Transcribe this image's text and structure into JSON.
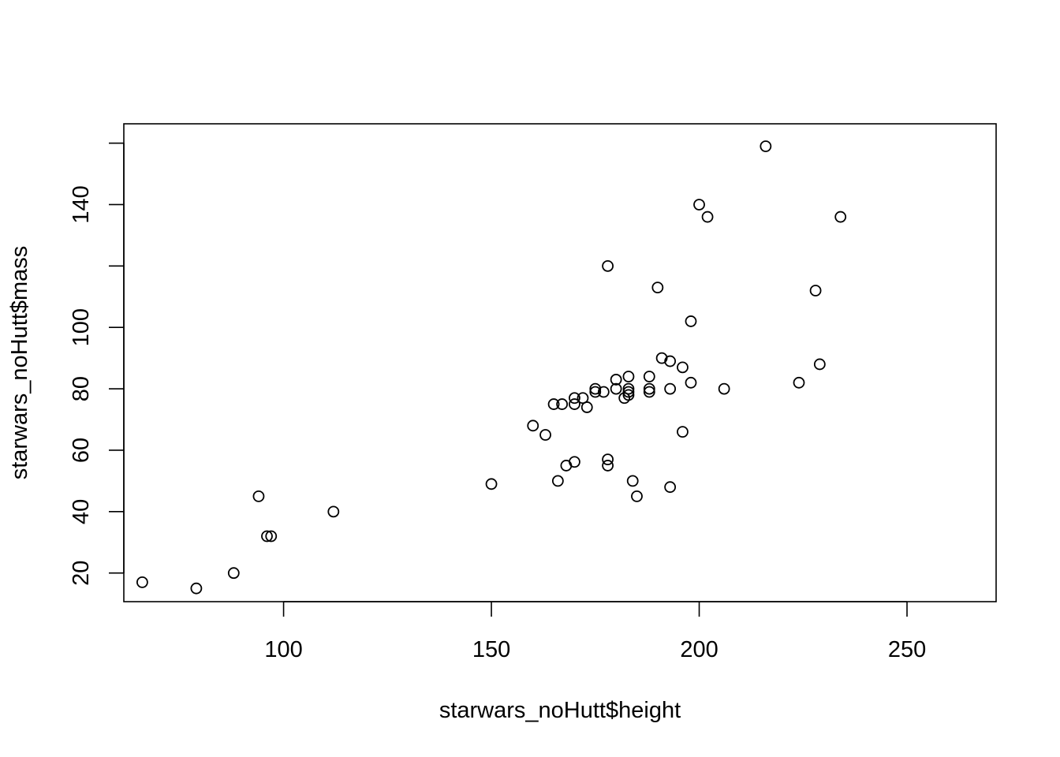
{
  "chart_data": {
    "type": "scatter",
    "title": "",
    "xlabel": "starwars_noHutt$height",
    "ylabel": "starwars_noHutt$mass",
    "xlim": [
      61.56,
      271.44
    ],
    "ylim": [
      10.68,
      166.32
    ],
    "x_ticks": [
      100,
      150,
      200,
      250
    ],
    "y_ticks": [
      20,
      40,
      60,
      80,
      100,
      120,
      140,
      160
    ],
    "x_tick_labels": [
      "100",
      "150",
      "200",
      "250"
    ],
    "y_tick_labels": [
      "20",
      "40",
      "60",
      "80",
      "100",
      "",
      "140",
      ""
    ],
    "grid": false,
    "legend": "none",
    "points": [
      [
        66,
        17
      ],
      [
        79,
        15
      ],
      [
        88,
        20
      ],
      [
        94,
        45
      ],
      [
        96,
        32
      ],
      [
        97,
        32
      ],
      [
        112,
        40
      ],
      [
        150,
        49
      ],
      [
        160,
        68
      ],
      [
        163,
        65
      ],
      [
        165,
        75
      ],
      [
        166,
        50
      ],
      [
        167,
        75
      ],
      [
        168,
        55
      ],
      [
        170,
        77
      ],
      [
        170,
        75
      ],
      [
        170,
        56.2
      ],
      [
        172,
        77
      ],
      [
        173,
        74
      ],
      [
        175,
        80
      ],
      [
        175,
        79
      ],
      [
        177,
        79
      ],
      [
        178,
        120
      ],
      [
        178,
        57
      ],
      [
        178,
        55
      ],
      [
        180,
        83
      ],
      [
        180,
        80
      ],
      [
        182,
        77
      ],
      [
        183,
        84
      ],
      [
        183,
        80
      ],
      [
        183,
        79
      ],
      [
        183,
        78
      ],
      [
        184,
        50
      ],
      [
        185,
        45
      ],
      [
        188,
        84
      ],
      [
        188,
        80
      ],
      [
        188,
        79
      ],
      [
        190,
        113
      ],
      [
        191,
        90
      ],
      [
        193,
        89
      ],
      [
        193,
        80
      ],
      [
        193,
        48
      ],
      [
        196,
        87
      ],
      [
        196,
        66
      ],
      [
        198,
        102
      ],
      [
        198,
        82
      ],
      [
        200,
        140
      ],
      [
        202,
        136
      ],
      [
        206,
        80
      ],
      [
        216,
        159
      ],
      [
        224,
        82
      ],
      [
        228,
        112
      ],
      [
        229,
        88
      ],
      [
        234,
        136
      ]
    ]
  }
}
